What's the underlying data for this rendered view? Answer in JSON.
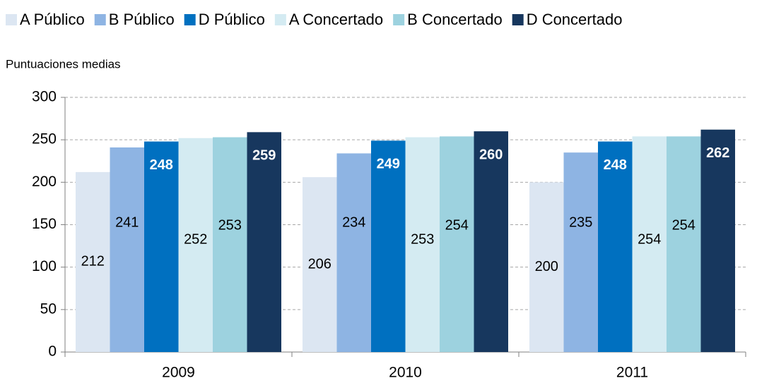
{
  "chart_data": {
    "type": "bar",
    "y_label": "Puntuaciones medias",
    "categories": [
      "2009",
      "2010",
      "2011"
    ],
    "series": [
      {
        "name": "A Público",
        "color": "#dce6f2",
        "values": [
          212,
          206,
          200
        ]
      },
      {
        "name": "B Público",
        "color": "#8eb4e3",
        "values": [
          241,
          234,
          235
        ]
      },
      {
        "name": "D Público",
        "color": "#0070c0",
        "values": [
          248,
          249,
          248
        ]
      },
      {
        "name": "A Concertado",
        "color": "#d4ebf2",
        "values": [
          252,
          253,
          254
        ]
      },
      {
        "name": "B Concertado",
        "color": "#9dd2df",
        "values": [
          253,
          254,
          254
        ]
      },
      {
        "name": "D Concertado",
        "color": "#17375e",
        "values": [
          259,
          260,
          262
        ]
      }
    ],
    "ylim": [
      0,
      300
    ],
    "yticks": [
      0,
      50,
      100,
      150,
      200,
      250,
      300
    ],
    "grid": true,
    "legend": "top"
  }
}
